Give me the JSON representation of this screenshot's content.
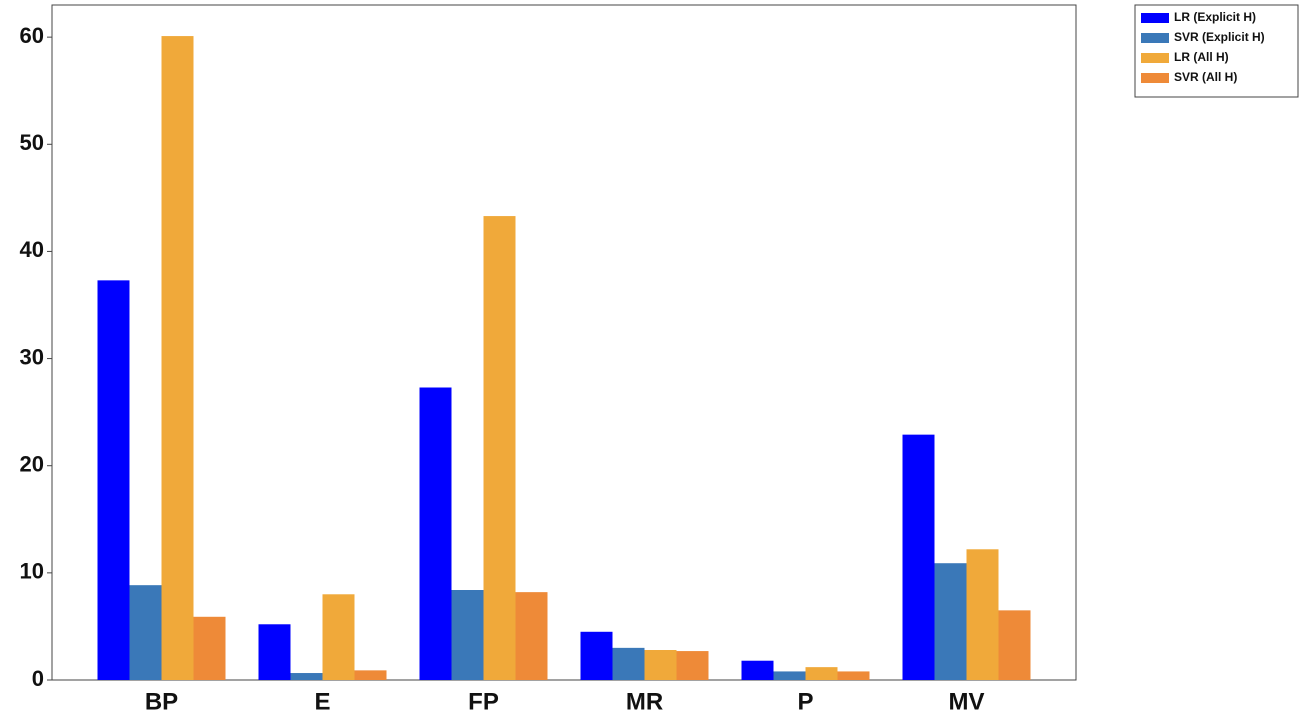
{
  "chart_data": {
    "type": "bar",
    "categories": [
      "BP",
      "E",
      "FP",
      "MR",
      "P",
      "MV"
    ],
    "series": [
      {
        "name": "LR (Explicit H)",
        "color": "#0000ff",
        "values": [
          37.3,
          5.2,
          27.3,
          4.5,
          1.8,
          22.9
        ]
      },
      {
        "name": "SVR (Explicit H)",
        "color": "#3a78b8",
        "values": [
          8.85,
          0.65,
          8.4,
          3.0,
          0.8,
          10.9
        ]
      },
      {
        "name": "LR (All H)",
        "color": "#f0a93a",
        "values": [
          60.1,
          8.0,
          43.3,
          2.8,
          1.2,
          12.2
        ]
      },
      {
        "name": "SVR (All H)",
        "color": "#ee8a38",
        "values": [
          5.9,
          0.9,
          8.2,
          2.7,
          0.8,
          6.5
        ]
      }
    ],
    "ylim": [
      0,
      63
    ],
    "yticks": [
      0,
      10,
      20,
      30,
      40,
      50,
      60
    ],
    "grid": false,
    "legend": "outside-top-right"
  }
}
